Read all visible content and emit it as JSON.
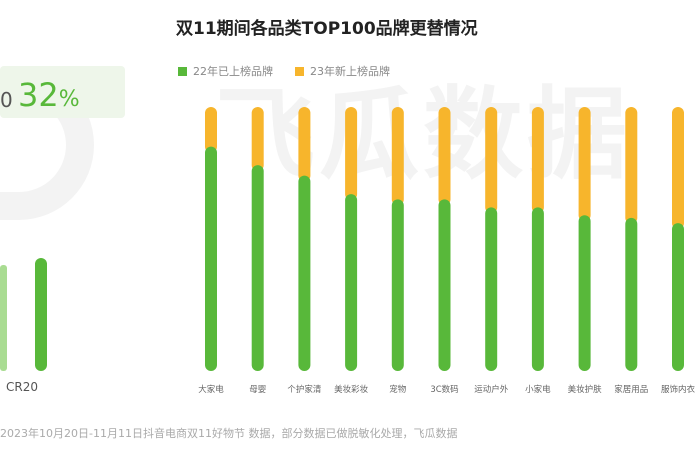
{
  "chart_data": {
    "type": "bar",
    "stacked": true,
    "title": "双11期间各品类TOP100品牌更替情况",
    "categories": [
      "大家电",
      "母婴",
      "个护家清",
      "美妆彩妆",
      "宠物",
      "3C数码",
      "运动户外",
      "小家电",
      "美妆护肤",
      "家居用品",
      "服饰内衣"
    ],
    "series": [
      {
        "name": "22年已上榜品牌",
        "color": "#58b83a",
        "values": [
          85,
          78,
          74,
          67,
          65,
          65,
          62,
          62,
          59,
          58,
          56
        ]
      },
      {
        "name": "23年新上榜品牌",
        "color": "#f7b52c",
        "values": [
          15,
          22,
          26,
          33,
          35,
          35,
          38,
          38,
          41,
          42,
          44
        ]
      }
    ],
    "ylim": [
      0,
      100
    ],
    "grid": false,
    "legend": "top-left"
  },
  "left_panel": {
    "value": "32",
    "unit": "%",
    "prefix": "0",
    "axis_label": "CR20"
  },
  "watermark": "飞瓜数据",
  "note": "2023年10月20日-11月11日抖音电商双11好物节 数据，部分数据已做脱敏化处理，飞瓜数据"
}
